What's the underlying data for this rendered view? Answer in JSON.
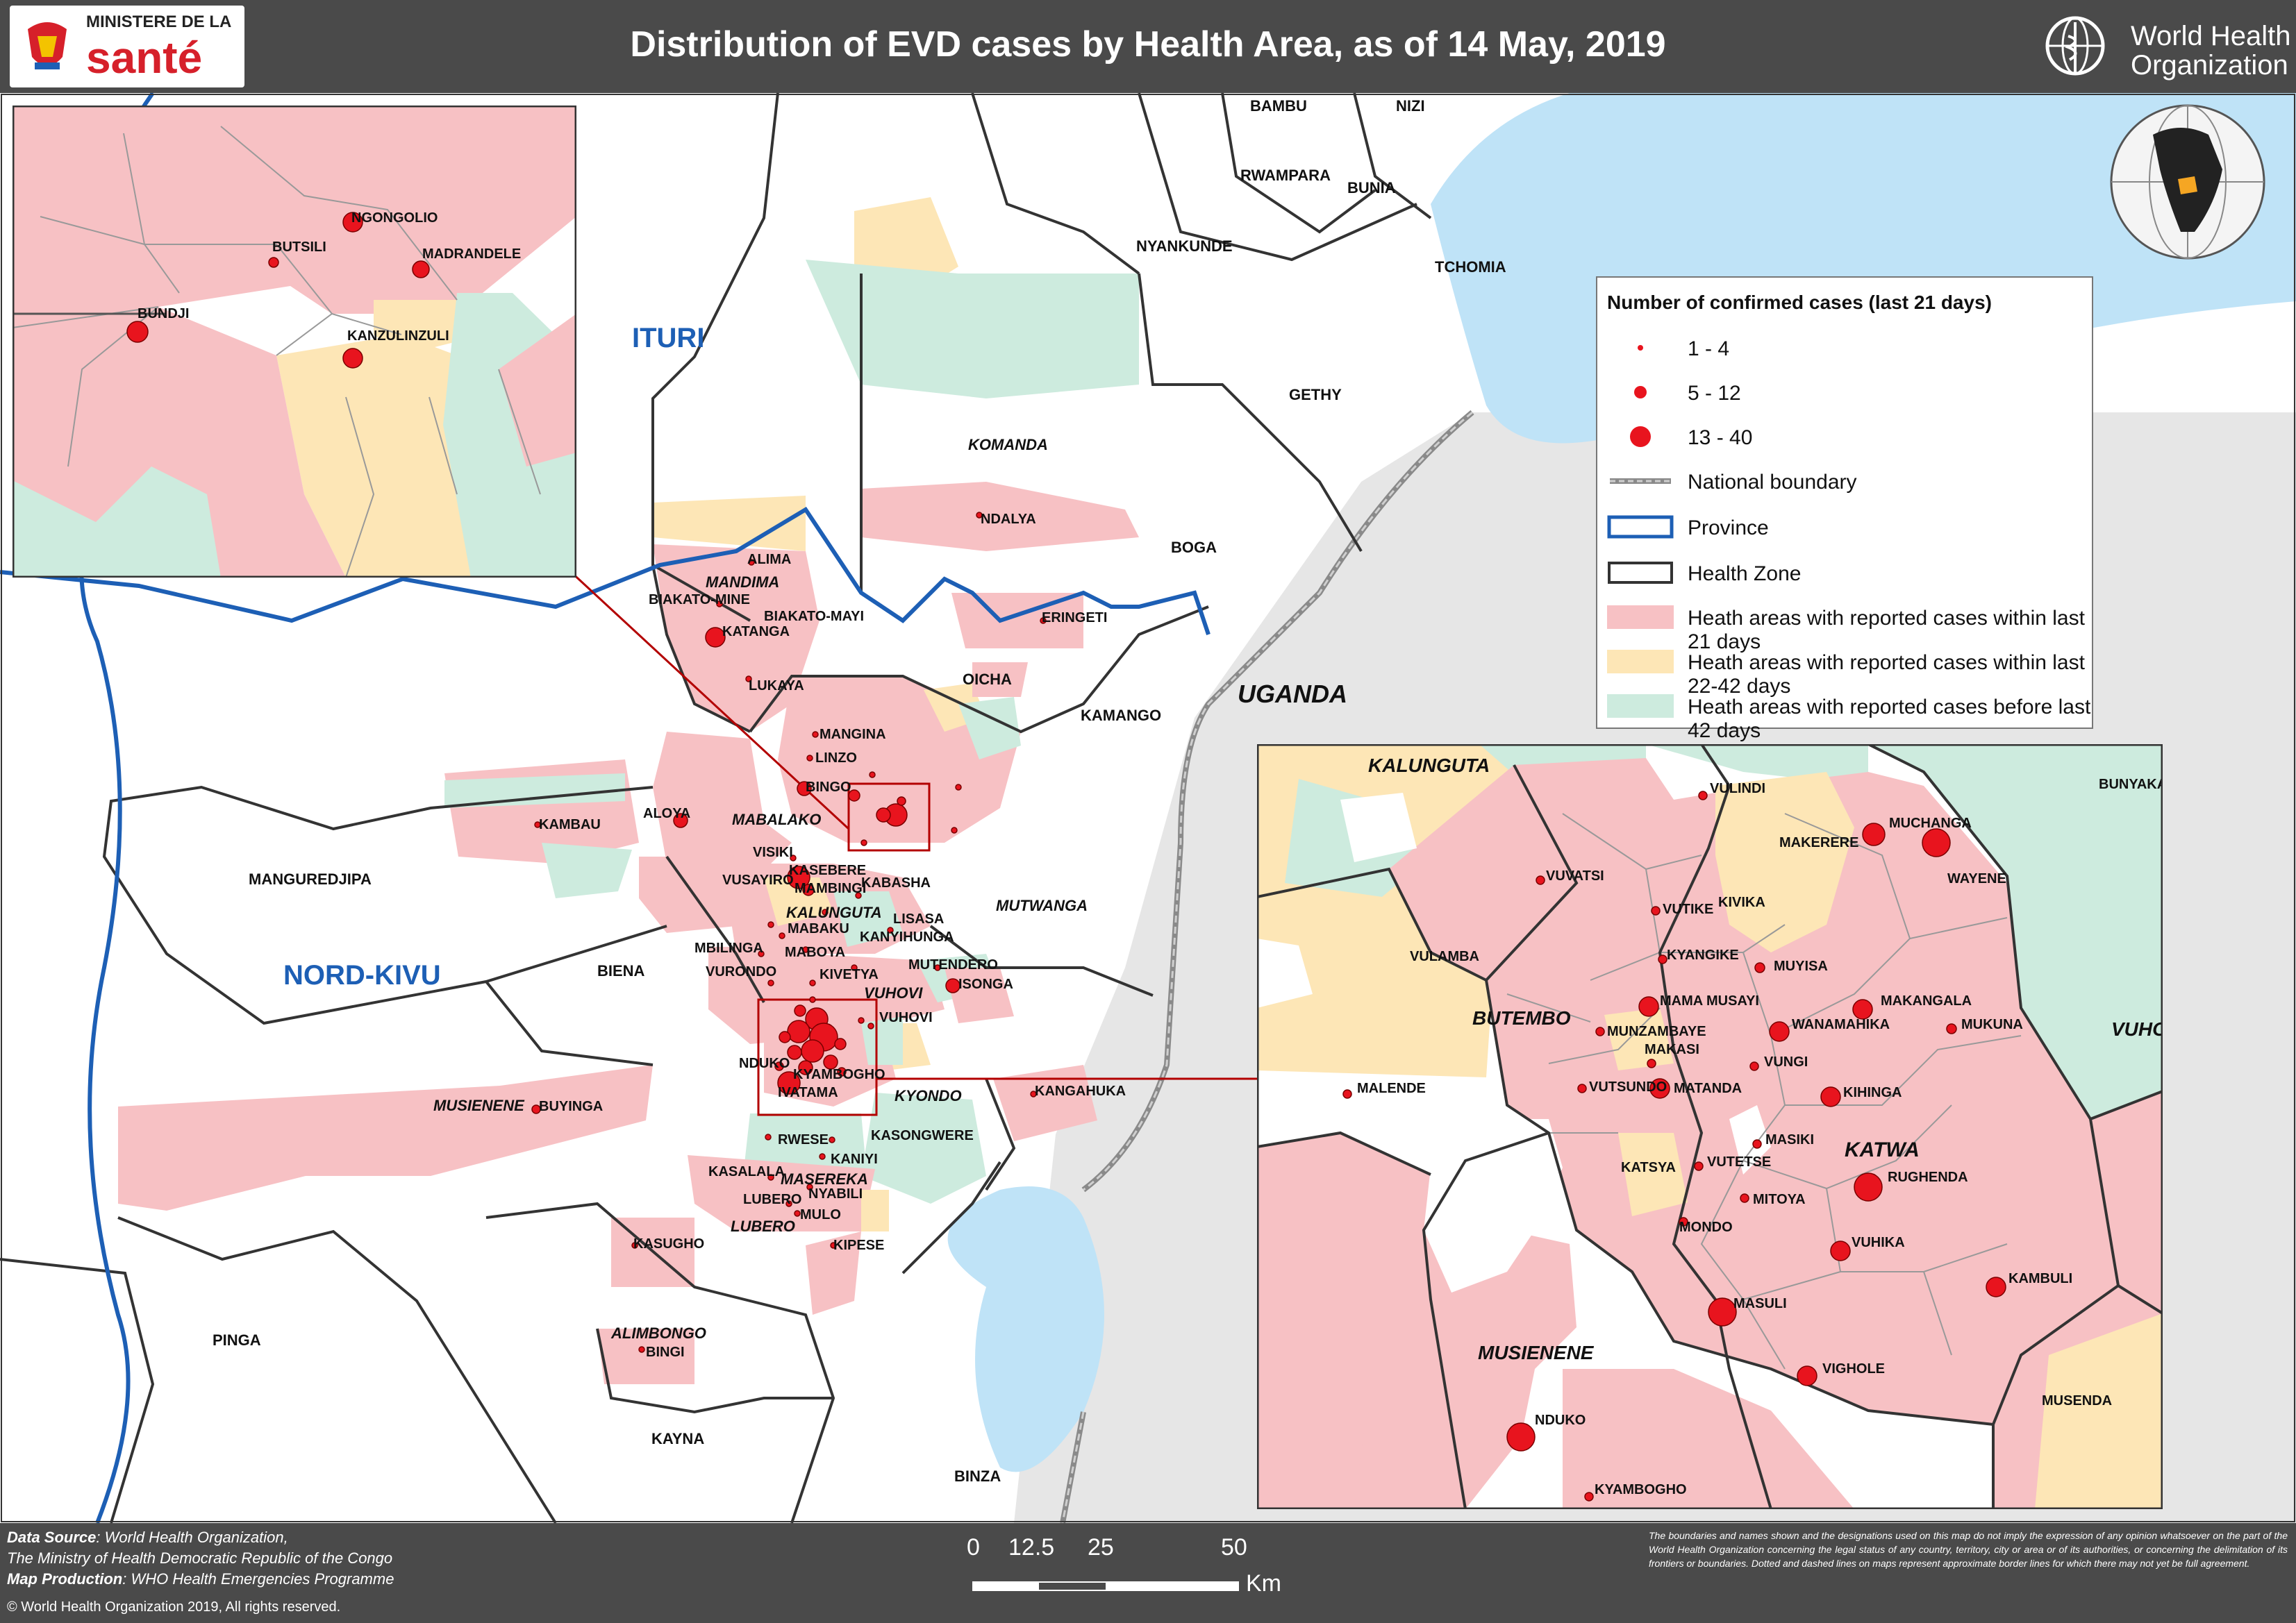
{
  "header": {
    "title": "Distribution of EVD cases by Health Area, as of 14 May, 2019",
    "moh_logo_line1": "MINISTERE DE LA",
    "moh_logo_line2": "santé",
    "who_line1": "World Health",
    "who_line2": "Organization"
  },
  "map": {
    "provinces": [
      "ITURI",
      "NORD-KIVU"
    ],
    "country": "UGANDA",
    "health_zones": [
      "BAMBU",
      "NIZI",
      "RWAMPARA",
      "BUNIA",
      "NYANKUNDE",
      "TCHOMIA",
      "GETHY",
      "KOMANDA",
      "BOGA",
      "MANDIMA",
      "OICHA",
      "KAMANGO",
      "MABALAKO",
      "MANGUREDJIPA",
      "KALUNGUTA",
      "MUTWANGA",
      "BIENA",
      "VUHOVI",
      "MUSIENENE",
      "KYONDO",
      "MASEREKA",
      "LUBERO",
      "ALIMBONGO",
      "PINGA",
      "KAYNA",
      "BINZA"
    ],
    "health_areas": [
      "ALIMA",
      "BIAKATO-MINE",
      "BIAKATO-MAYI",
      "KATANGA",
      "LUKAYA",
      "NDALYA",
      "ERINGETI",
      "MANGINA",
      "LINZO",
      "BINGO",
      "ALOYA",
      "KAMBAU",
      "VISIKI",
      "KASEBERE",
      "KABASHA",
      "VUSAYIRO",
      "MAMBINGI",
      "LISASA",
      "MBILINGA",
      "MABAKU",
      "KANYIHUNGA",
      "VURONDO",
      "MABOYA",
      "KIVETYA",
      "MUTENDERO",
      "ISONGA",
      "VUHOVI",
      "NDUKO",
      "KYAMBOGHO",
      "IVATAMA",
      "BUYINGA",
      "KANGAHUKA",
      "RWESE",
      "KASONGWERE",
      "KANIYI",
      "KASALALA",
      "NYABILI",
      "LUBERO",
      "MULO",
      "KIPESE",
      "KASUGHO",
      "BINGI"
    ],
    "dot_color": "#e8141e"
  },
  "inset_north": {
    "areas": [
      "NGONGOLIO",
      "BUTSILI",
      "MADRANDELE",
      "BUNDJI",
      "KANZULINZULI"
    ]
  },
  "inset_south": {
    "zones": [
      "KALUNGUTA",
      "BUTEMBO",
      "VUHOVI",
      "KATWA",
      "MUSIENENE"
    ],
    "areas": [
      "BUNYAKA",
      "VULINDI",
      "MAKERERE",
      "MUCHANGA",
      "WAYENE",
      "VUVATSI",
      "VUTIKE",
      "KIVIKA",
      "VULAMBA",
      "KYANGIKE",
      "MUYISA",
      "MAMA MUSAYI",
      "MAKANGALA",
      "MUKUNA",
      "WANAMAHIKA",
      "MUNZAMBAYE",
      "MAKASI",
      "VUNGI",
      "MALENDE",
      "VUTSUNDO",
      "MATANDA",
      "KIHINGA",
      "MASIKI",
      "KATSYA",
      "VUTETSE",
      "RUGHENDA",
      "MITOYA",
      "MONDO",
      "VUHIKA",
      "KAMBULI",
      "MASULI",
      "VIGHOLE",
      "MUSENDA",
      "NDUKO",
      "KYAMBOGHO"
    ]
  },
  "legend": {
    "title": "Number of confirmed cases (last 21 days)",
    "items": [
      {
        "label": "1 - 4",
        "kind": "dot-small"
      },
      {
        "label": "5 - 12",
        "kind": "dot-medium"
      },
      {
        "label": "13 - 40",
        "kind": "dot-large"
      },
      {
        "label": "National boundary",
        "kind": "line-national"
      },
      {
        "label": "Province",
        "kind": "box-province"
      },
      {
        "label": "Health Zone",
        "kind": "box-zone"
      },
      {
        "label": "Heath areas with reported cases within last 21 days",
        "kind": "fill",
        "color": "#f7c1c4"
      },
      {
        "label": "Heath areas with reported cases within last 22-42 days",
        "kind": "fill",
        "color": "#fde6b6"
      },
      {
        "label": "Heath areas with reported cases before last 42 days",
        "kind": "fill",
        "color": "#cdebde"
      }
    ]
  },
  "scale": {
    "ticks": [
      "0",
      "12.5",
      "25",
      "50"
    ],
    "unit": "Km"
  },
  "footer": {
    "source_label": "Data Source",
    "source_1": ": World Health Organization,",
    "source_2": "The Ministry of Health Democratic Republic of the Congo",
    "production_label": "Map Production",
    "production": ": WHO Health Emergencies Programme",
    "copyright": "© World Health Organization 2019, All rights reserved.",
    "disclaimer": "The boundaries and names shown and the designations used on this map do not imply the expression of any opinion whatsoever on the part of the World Health Organization concerning the legal status of any country, territory, city or area or of its authorities, or concerning the delimitation of its frontiers or boundaries. Dotted and dashed lines on maps represent approximate border lines for which there may not yet be full agreement."
  }
}
